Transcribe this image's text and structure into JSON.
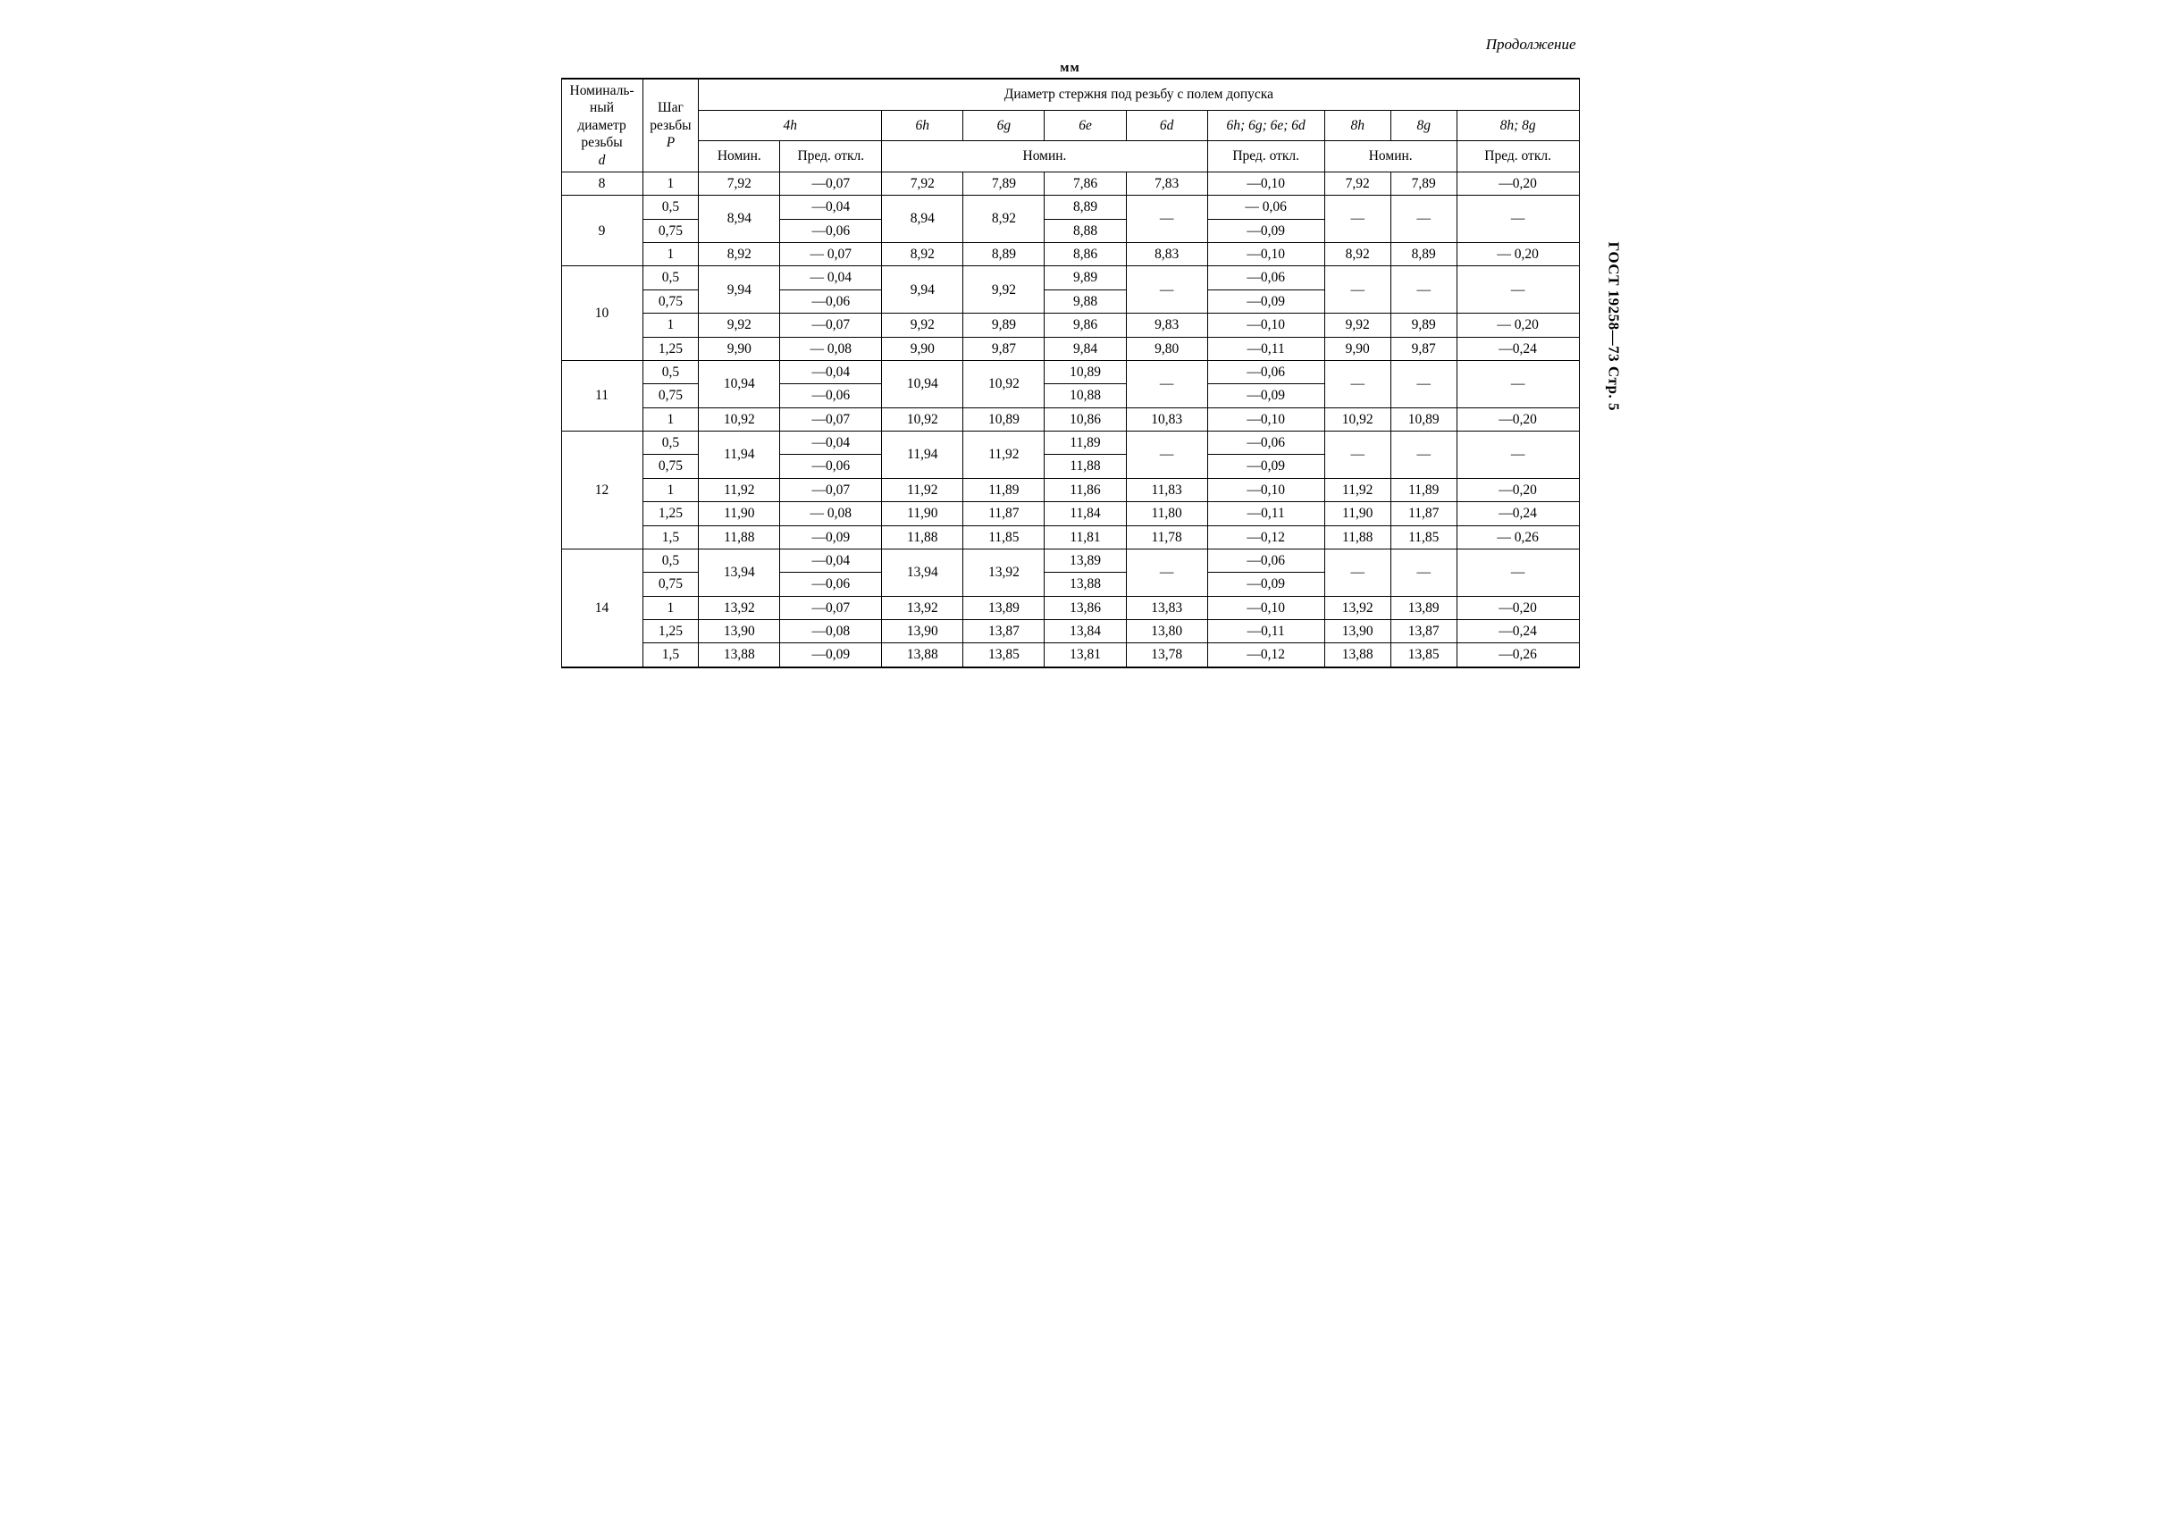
{
  "continuation": "Продолжение",
  "unit": "мм",
  "sidelabel": "ГОСТ 19258—73 Стр. 5",
  "head": {
    "col_d_html": "Номиналь-<br>ный<br>диаметр<br>резьбы<br><span class=\"ital\">d</span>",
    "col_p_html": "Шаг<br>резьбы<br><span class=\"ital\">P</span>",
    "spanTitle": "Диаметр стержня под резьбу с полем допуска",
    "c4h": "4h",
    "c6h": "6h",
    "c6g": "6g",
    "c6e": "6e",
    "c6d": "6d",
    "cGrp6": "6h; 6g; 6e; 6d",
    "c8h": "8h",
    "c8g": "8g",
    "cGrp8": "8h; 8g",
    "nomin": "Номин.",
    "tol": "Пред. откл."
  },
  "groups": [
    {
      "d": "8",
      "rows": [
        {
          "p": "1",
          "n4h": "7,92",
          "t4h": "—0,07",
          "n6h": "7,92",
          "n6g": "7,89",
          "n6e": "7,86",
          "n6d": "7,83",
          "t6": "—0,10",
          "n8h": "7,92",
          "n8g": "7,89",
          "t8": "—0,20"
        }
      ]
    },
    {
      "d": "9",
      "rows": [
        {
          "p": "0,5",
          "t4h": "—0,04",
          "n6e": "8,89",
          "t6": "— 0,06",
          "merge_down": {
            "n4h": "8,94",
            "n6h": "8,94",
            "n6g": "8,92",
            "n6d": "—",
            "n8h": "—",
            "n8g": "—",
            "t8": "—"
          }
        },
        {
          "p": "0,75",
          "t4h": "—0,06",
          "n6e": "8,88",
          "t6": "—0,09"
        },
        {
          "p": "1",
          "n4h": "8,92",
          "t4h": "— 0,07",
          "n6h": "8,92",
          "n6g": "8,89",
          "n6e": "8,86",
          "n6d": "8,83",
          "t6": "—0,10",
          "n8h": "8,92",
          "n8g": "8,89",
          "t8": "— 0,20"
        }
      ]
    },
    {
      "d": "10",
      "rows": [
        {
          "p": "0,5",
          "t4h": "— 0,04",
          "n6e": "9,89",
          "t6": "—0,06",
          "merge_down": {
            "n4h": "9,94",
            "n6h": "9,94",
            "n6g": "9,92",
            "n6d": "—",
            "n8h": "—",
            "n8g": "—",
            "t8": "—"
          }
        },
        {
          "p": "0,75",
          "t4h": "—0,06",
          "n6e": "9,88",
          "t6": "—0,09"
        },
        {
          "p": "1",
          "n4h": "9,92",
          "t4h": "—0,07",
          "n6h": "9,92",
          "n6g": "9,89",
          "n6e": "9,86",
          "n6d": "9,83",
          "t6": "—0,10",
          "n8h": "9,92",
          "n8g": "9,89",
          "t8": "— 0,20"
        },
        {
          "p": "1,25",
          "n4h": "9,90",
          "t4h": "— 0,08",
          "n6h": "9,90",
          "n6g": "9,87",
          "n6e": "9,84",
          "n6d": "9,80",
          "t6": "—0,11",
          "n8h": "9,90",
          "n8g": "9,87",
          "t8": "—0,24"
        }
      ]
    },
    {
      "d": "11",
      "rows": [
        {
          "p": "0,5",
          "t4h": "—0,04",
          "n6e": "10,89",
          "t6": "—0,06",
          "merge_down": {
            "n4h": "10,94",
            "n6h": "10,94",
            "n6g": "10,92",
            "n6d": "—",
            "n8h": "—",
            "n8g": "—",
            "t8": "—"
          }
        },
        {
          "p": "0,75",
          "t4h": "—0,06",
          "n6e": "10,88",
          "t6": "—0,09"
        },
        {
          "p": "1",
          "n4h": "10,92",
          "t4h": "—0,07",
          "n6h": "10,92",
          "n6g": "10,89",
          "n6e": "10,86",
          "n6d": "10,83",
          "t6": "—0,10",
          "n8h": "10,92",
          "n8g": "10,89",
          "t8": "—0,20"
        }
      ]
    },
    {
      "d": "12",
      "rows": [
        {
          "p": "0,5",
          "t4h": "—0,04",
          "n6e": "11,89",
          "t6": "—0,06",
          "merge_down": {
            "n4h": "11,94",
            "n6h": "11,94",
            "n6g": "11,92",
            "n6d": "—",
            "n8h": "—",
            "n8g": "—",
            "t8": "—"
          }
        },
        {
          "p": "0,75",
          "t4h": "—0,06",
          "n6e": "11,88",
          "t6": "—0,09"
        },
        {
          "p": "1",
          "n4h": "11,92",
          "t4h": "—0,07",
          "n6h": "11,92",
          "n6g": "11,89",
          "n6e": "11,86",
          "n6d": "11,83",
          "t6": "—0,10",
          "n8h": "11,92",
          "n8g": "11,89",
          "t8": "—0,20"
        },
        {
          "p": "1,25",
          "n4h": "11,90",
          "t4h": "— 0,08",
          "n6h": "11,90",
          "n6g": "11,87",
          "n6e": "11,84",
          "n6d": "11,80",
          "t6": "—0,11",
          "n8h": "11,90",
          "n8g": "11,87",
          "t8": "—0,24"
        },
        {
          "p": "1,5",
          "n4h": "11,88",
          "t4h": "—0,09",
          "n6h": "11,88",
          "n6g": "11,85",
          "n6e": "11,81",
          "n6d": "11,78",
          "t6": "—0,12",
          "n8h": "11,88",
          "n8g": "11,85",
          "t8": "— 0,26"
        }
      ]
    },
    {
      "d": "14",
      "rows": [
        {
          "p": "0,5",
          "t4h": "—0,04",
          "n6e": "13,89",
          "t6": "—0,06",
          "merge_down": {
            "n4h": "13,94",
            "n6h": "13,94",
            "n6g": "13,92",
            "n6d": "—",
            "n8h": "—",
            "n8g": "—",
            "t8": "—"
          }
        },
        {
          "p": "0,75",
          "t4h": "—0,06",
          "n6e": "13,88",
          "t6": "—0,09"
        },
        {
          "p": "1",
          "n4h": "13,92",
          "t4h": "—0,07",
          "n6h": "13,92",
          "n6g": "13,89",
          "n6e": "13,86",
          "n6d": "13,83",
          "t6": "—0,10",
          "n8h": "13,92",
          "n8g": "13,89",
          "t8": "—0,20"
        },
        {
          "p": "1,25",
          "n4h": "13,90",
          "t4h": "—0,08",
          "n6h": "13,90",
          "n6g": "13,87",
          "n6e": "13,84",
          "n6d": "13,80",
          "t6": "—0,11",
          "n8h": "13,90",
          "n8g": "13,87",
          "t8": "—0,24"
        },
        {
          "p": "1,5",
          "n4h": "13,88",
          "t4h": "—0,09",
          "n6h": "13,88",
          "n6g": "13,85",
          "n6e": "13,81",
          "n6d": "13,78",
          "t6": "—0,12",
          "n8h": "13,88",
          "n8g": "13,85",
          "t8": "—0,26"
        }
      ]
    }
  ]
}
